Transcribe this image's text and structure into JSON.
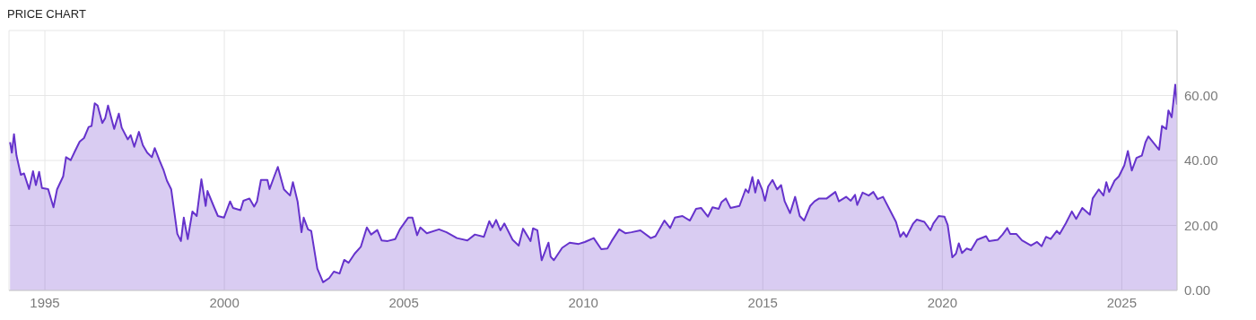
{
  "chart_data": {
    "type": "area",
    "title": "PRICE CHART",
    "x": [
      1994.03,
      1994.08,
      1994.14,
      1994.21,
      1994.33,
      1994.42,
      1994.56,
      1994.67,
      1994.75,
      1994.84,
      1994.92,
      1995.09,
      1995.24,
      1995.34,
      1995.51,
      1995.59,
      1995.72,
      1995.84,
      1995.97,
      1996.09,
      1996.22,
      1996.3,
      1996.39,
      1996.47,
      1996.6,
      1996.68,
      1996.76,
      1996.93,
      1997.06,
      1997.14,
      1997.31,
      1997.39,
      1997.49,
      1997.62,
      1997.73,
      1997.85,
      1997.98,
      1998.06,
      1998.19,
      1998.31,
      1998.4,
      1998.52,
      1998.69,
      1998.79,
      1998.87,
      1998.98,
      1999.11,
      1999.23,
      1999.36,
      1999.48,
      1999.53,
      1999.7,
      1999.82,
      1999.99,
      2000.16,
      2000.24,
      2000.45,
      2000.53,
      2000.7,
      2000.83,
      2000.91,
      2001.02,
      2001.2,
      2001.26,
      2001.39,
      2001.49,
      2001.66,
      2001.83,
      2001.91,
      2002.04,
      2002.15,
      2002.21,
      2002.33,
      2002.42,
      2002.59,
      2002.75,
      2002.92,
      2003.05,
      2003.21,
      2003.34,
      2003.46,
      2003.63,
      2003.8,
      2003.97,
      2004.09,
      2004.26,
      2004.38,
      2004.55,
      2004.76,
      2004.89,
      2005.12,
      2005.24,
      2005.37,
      2005.46,
      2005.64,
      2005.98,
      2006.19,
      2006.48,
      2006.77,
      2006.98,
      2007.23,
      2007.38,
      2007.47,
      2007.57,
      2007.69,
      2007.8,
      2008.03,
      2008.2,
      2008.32,
      2008.53,
      2008.6,
      2008.72,
      2008.84,
      2009.03,
      2009.09,
      2009.18,
      2009.41,
      2009.62,
      2009.87,
      2010.04,
      2010.29,
      2010.5,
      2010.67,
      2010.79,
      2011.0,
      2011.17,
      2011.34,
      2011.59,
      2011.88,
      2012.01,
      2012.26,
      2012.42,
      2012.55,
      2012.76,
      2012.97,
      2013.14,
      2013.28,
      2013.47,
      2013.6,
      2013.77,
      2013.85,
      2013.97,
      2014.1,
      2014.35,
      2014.52,
      2014.6,
      2014.71,
      2014.79,
      2014.87,
      2014.98,
      2015.06,
      2015.15,
      2015.27,
      2015.4,
      2015.51,
      2015.61,
      2015.76,
      2015.9,
      2016.03,
      2016.15,
      2016.32,
      2016.44,
      2016.57,
      2016.78,
      2017.02,
      2017.12,
      2017.32,
      2017.45,
      2017.57,
      2017.63,
      2017.78,
      2017.95,
      2018.08,
      2018.2,
      2018.35,
      2018.5,
      2018.71,
      2018.83,
      2018.92,
      2019.0,
      2019.19,
      2019.29,
      2019.5,
      2019.67,
      2019.75,
      2019.9,
      2020.06,
      2020.15,
      2020.28,
      2020.38,
      2020.46,
      2020.55,
      2020.68,
      2020.8,
      2020.97,
      2021.22,
      2021.3,
      2021.55,
      2021.68,
      2021.81,
      2021.89,
      2022.06,
      2022.22,
      2022.47,
      2022.64,
      2022.77,
      2022.89,
      2023.02,
      2023.19,
      2023.27,
      2023.44,
      2023.61,
      2023.73,
      2023.9,
      2024.11,
      2024.19,
      2024.36,
      2024.49,
      2024.57,
      2024.65,
      2024.8,
      2024.92,
      2025.07,
      2025.17,
      2025.28,
      2025.41,
      2025.56,
      2025.66,
      2025.74,
      2025.91,
      2026.04,
      2026.12,
      2026.24,
      2026.3,
      2026.39,
      2026.49,
      2026.54
    ],
    "values": [
      45.6,
      42.4,
      48.1,
      41.5,
      35.6,
      36.0,
      31.2,
      36.7,
      32.4,
      36.5,
      31.5,
      31.2,
      25.6,
      31.1,
      35.1,
      41.0,
      40.1,
      42.9,
      45.8,
      46.9,
      50.3,
      50.6,
      57.6,
      56.9,
      51.5,
      53.0,
      56.9,
      49.7,
      54.4,
      50.1,
      46.5,
      47.8,
      44.2,
      48.8,
      44.7,
      42.4,
      41.0,
      43.8,
      40.1,
      36.9,
      33.8,
      31.1,
      17.4,
      15.2,
      22.4,
      15.8,
      24.3,
      22.9,
      34.2,
      26.0,
      30.6,
      26.0,
      22.9,
      22.4,
      27.4,
      25.4,
      24.7,
      27.6,
      28.3,
      25.8,
      27.4,
      34.0,
      34.0,
      31.2,
      35.1,
      38.0,
      31.1,
      29.2,
      33.3,
      27.4,
      17.9,
      22.4,
      18.8,
      18.3,
      6.7,
      2.5,
      3.8,
      5.8,
      5.2,
      9.4,
      8.5,
      11.3,
      13.4,
      19.4,
      17.2,
      18.6,
      15.4,
      15.2,
      15.8,
      18.8,
      22.4,
      22.4,
      17.0,
      19.4,
      17.6,
      18.8,
      17.9,
      16.1,
      15.4,
      17.2,
      16.5,
      21.3,
      19.4,
      21.7,
      18.5,
      20.6,
      15.6,
      13.8,
      19.0,
      15.2,
      19.1,
      18.5,
      9.3,
      14.7,
      10.4,
      9.3,
      13.1,
      14.7,
      14.3,
      14.9,
      16.1,
      12.7,
      12.9,
      15.2,
      18.8,
      17.6,
      17.9,
      18.5,
      16.1,
      16.7,
      21.5,
      19.2,
      22.4,
      22.9,
      21.5,
      25.1,
      25.4,
      22.7,
      25.6,
      25.1,
      27.2,
      28.3,
      25.4,
      26.0,
      31.1,
      30.1,
      34.9,
      30.1,
      34.0,
      31.1,
      27.6,
      32.0,
      34.0,
      31.1,
      32.4,
      27.4,
      23.8,
      28.8,
      22.9,
      21.5,
      26.0,
      27.4,
      28.3,
      28.3,
      30.3,
      27.4,
      28.8,
      27.6,
      29.4,
      26.3,
      30.1,
      29.2,
      30.3,
      28.1,
      28.8,
      25.6,
      21.1,
      16.5,
      17.9,
      16.5,
      20.6,
      21.8,
      21.1,
      18.5,
      20.6,
      22.9,
      22.7,
      20.2,
      10.2,
      11.3,
      14.5,
      11.5,
      12.9,
      12.4,
      15.6,
      16.7,
      15.2,
      15.6,
      17.2,
      19.2,
      17.4,
      17.4,
      15.4,
      13.8,
      14.9,
      13.6,
      16.5,
      15.8,
      18.3,
      17.4,
      20.6,
      24.3,
      22.0,
      25.4,
      23.3,
      28.3,
      31.1,
      29.2,
      33.3,
      30.3,
      33.8,
      35.1,
      38.5,
      42.9,
      36.9,
      40.8,
      41.5,
      45.6,
      47.4,
      45.1,
      43.3,
      50.6,
      49.7,
      55.4,
      53.3,
      63.3,
      57.2
    ],
    "color": "#6633cc",
    "xlim": [
      1994,
      2026.54
    ],
    "xticks": [
      1995,
      2000,
      2005,
      2010,
      2015,
      2020,
      2025
    ],
    "ylim": [
      0,
      80
    ],
    "yticks": [
      {
        "value": 0,
        "label": "0.00"
      },
      {
        "value": 20,
        "label": "20.00"
      },
      {
        "value": 40,
        "label": "40.00"
      },
      {
        "value": 60,
        "label": "60.00"
      }
    ],
    "grid": true
  }
}
